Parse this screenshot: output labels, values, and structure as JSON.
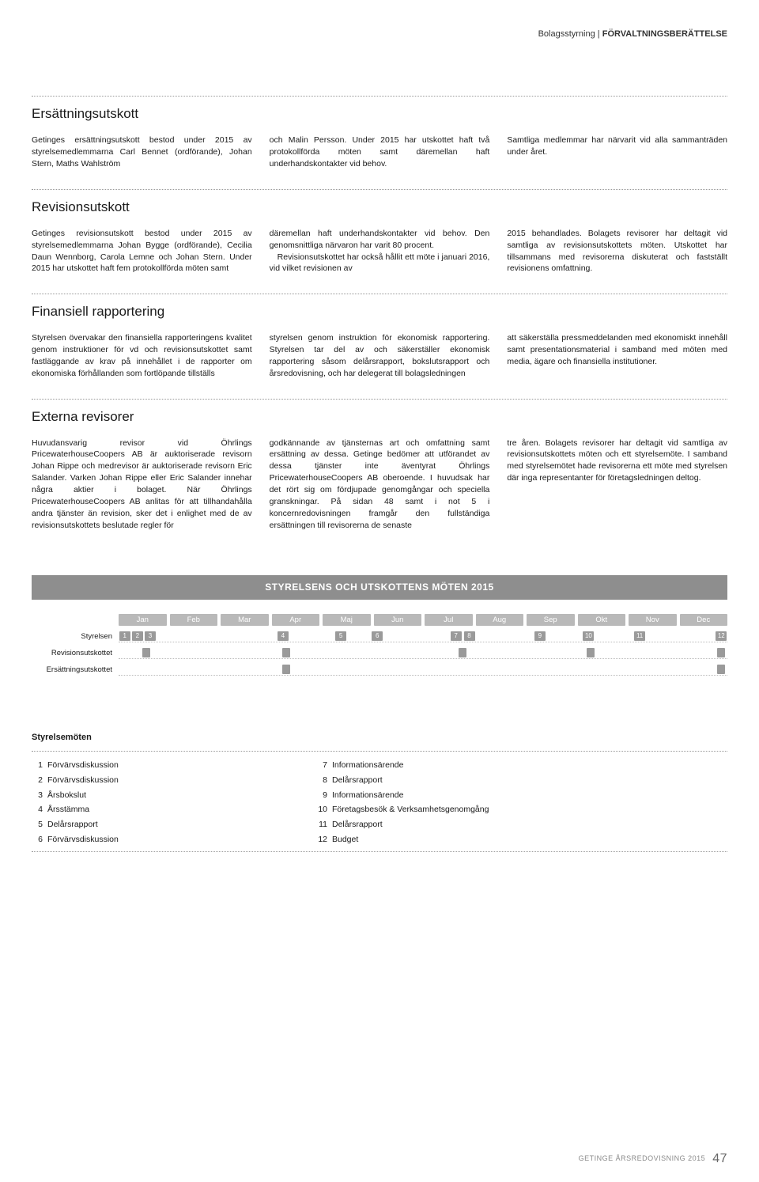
{
  "header": {
    "light": "Bolagsstyrning",
    "sep": " | ",
    "bold": "FÖRVALTNINGSBERÄTTELSE"
  },
  "sections": {
    "ersattning": {
      "title": "Ersättningsutskott",
      "col1": "Getinges ersättningsutskott bestod under 2015 av styrelsemedlemmarna Carl Bennet (ordförande), Johan Stern, Maths Wahlström",
      "col2": "och Malin Persson. Under 2015 har utskottet haft två protokollförda möten samt däremellan haft underhandskontakter vid behov.",
      "col3": "Samtliga medlemmar har närvarit vid alla sammanträden under året."
    },
    "revision": {
      "title": "Revisionsutskott",
      "col1": "Getinges revisionsutskott bestod under 2015 av styrelsemedlemmarna Johan Bygge (ordförande), Cecilia Daun Wennborg, Carola Lemne och Johan Stern. Under 2015 har utskottet haft fem protokollförda möten samt",
      "col2a": "däremellan haft underhandskontakter vid behov. Den genomsnittliga närvaron har varit 80 procent.",
      "col2b": "Revisionsutskottet har också hållit ett möte i januari 2016, vid vilket revisionen av",
      "col3": "2015 behandlades. Bolagets revisorer har deltagit vid samtliga av revisionsutskottets möten. Utskottet har tillsammans med revisorerna diskuterat och fastställt revisionens omfattning."
    },
    "finansiell": {
      "title": "Finansiell rapportering",
      "col1": "Styrelsen övervakar den finansiella rapporteringens kvalitet genom instruktioner för vd och revisionsutskottet samt fastläggande av krav på innehållet i de rapporter om ekonomiska förhållanden som fortlöpande tillställs",
      "col2": "styrelsen genom instruktion för ekonomisk rapportering. Styrelsen tar del av och säkerställer ekonomisk rapportering såsom delårsrapport, bokslutsrapport och årsredovisning, och har delegerat till bolagsledningen",
      "col3": "att säkerställa pressmeddelanden med ekonomiskt innehåll samt presentationsmaterial i samband med möten med media, ägare och finansiella institutioner."
    },
    "externa": {
      "title": "Externa revisorer",
      "col1": "Huvudansvarig revisor vid Öhrlings PricewaterhouseCoopers AB är auktoriserade revisorn Johan Rippe och medrevisor är auktoriserade revisorn Eric Salander. Varken Johan Rippe eller Eric Salander innehar några aktier i bolaget. När Öhrlings PricewaterhouseCoopers AB anlitas för att tillhandahålla andra tjänster än revision, sker det i enlighet med de av revisionsutskottets beslutade regler för",
      "col2": "godkännande av tjänsternas art och omfattning samt ersättning av dessa. Getinge bedömer att utförandet av dessa tjänster inte äventyrat Öhrlings PricewaterhouseCoopers AB oberoende. I huvudsak har det rört sig om fördjupade genomgångar och speciella granskningar. På sidan 48 samt i not 5 i koncernredovisningen framgår den fullständiga ersättningen till revisorerna de senaste",
      "col3": "tre åren. Bolagets revisorer har deltagit vid samtliga av revisionsutskottets möten och ett styrelsemöte. I samband med styrelsemötet hade revisorerna ett möte med styrelsen där inga representanter för företagsledningen deltog."
    }
  },
  "timeline": {
    "title": "STYRELSENS OCH UTSKOTTENS MÖTEN 2015",
    "months": [
      "Jan",
      "Feb",
      "Mar",
      "Apr",
      "Maj",
      "Jun",
      "Jul",
      "Aug",
      "Sep",
      "Okt",
      "Nov",
      "Dec"
    ],
    "rows": [
      {
        "label": "Styrelsen",
        "markers": [
          {
            "pos": 1.0,
            "num": "1"
          },
          {
            "pos": 3.1,
            "num": "2"
          },
          {
            "pos": 5.2,
            "num": "3"
          },
          {
            "pos": 27.0,
            "num": "4"
          },
          {
            "pos": 36.5,
            "num": "5"
          },
          {
            "pos": 42.5,
            "num": "6"
          },
          {
            "pos": 55.4,
            "num": "7"
          },
          {
            "pos": 57.6,
            "num": "8"
          },
          {
            "pos": 69.2,
            "num": "9"
          },
          {
            "pos": 77.2,
            "num": "10"
          },
          {
            "pos": 85.6,
            "num": "11"
          },
          {
            "pos": 99.0,
            "num": "12"
          }
        ]
      },
      {
        "label": "Revisionsutskottet",
        "markers": [
          {
            "pos": 4.5,
            "num": ""
          },
          {
            "pos": 27.5,
            "num": ""
          },
          {
            "pos": 56.5,
            "num": ""
          },
          {
            "pos": 77.5,
            "num": ""
          },
          {
            "pos": 99.0,
            "num": ""
          }
        ]
      },
      {
        "label": "Ersättningsutskottet",
        "markers": [
          {
            "pos": 27.5,
            "num": ""
          },
          {
            "pos": 99.0,
            "num": ""
          }
        ]
      }
    ]
  },
  "legend": {
    "title": "Styrelsemöten",
    "colA": [
      {
        "n": "1",
        "t": "Förvärvsdiskussion"
      },
      {
        "n": "2",
        "t": "Förvärvsdiskussion"
      },
      {
        "n": "3",
        "t": "Årsbokslut"
      },
      {
        "n": "4",
        "t": "Årsstämma"
      },
      {
        "n": "5",
        "t": "Delårsrapport"
      },
      {
        "n": "6",
        "t": "Förvärvsdiskussion"
      }
    ],
    "colB": [
      {
        "n": "7",
        "t": "Informationsärende"
      },
      {
        "n": "8",
        "t": "Delårsrapport"
      },
      {
        "n": "9",
        "t": "Informationsärende"
      },
      {
        "n": "10",
        "t": "Företagsbesök & Verksamhetsgenomgång"
      },
      {
        "n": "11",
        "t": "Delårsrapport"
      },
      {
        "n": "12",
        "t": "Budget"
      }
    ]
  },
  "footer": {
    "text": "GETINGE ÅRSREDOVISNING 2015",
    "page": "47"
  }
}
